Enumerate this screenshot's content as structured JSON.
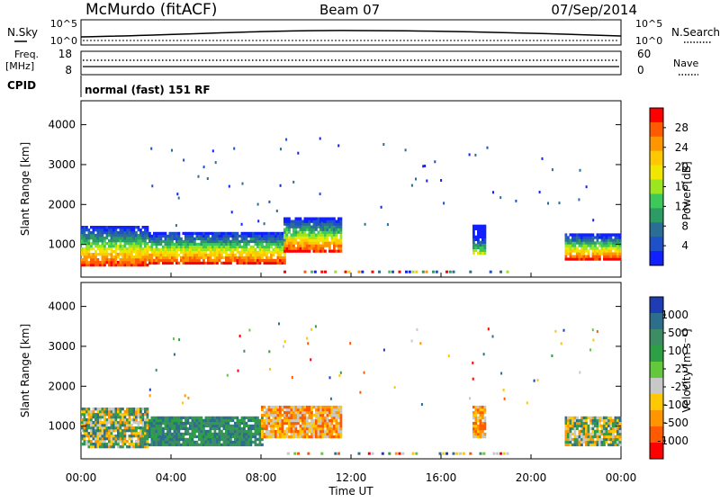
{
  "header": {
    "station": "McMurdo (fitACF)",
    "beam": "Beam 07",
    "date": "07/Sep/2014"
  },
  "top_panel": {
    "left_label": "N.Sky",
    "right_label": "N.Search",
    "left_ticks": [
      "10^5",
      "10^0"
    ],
    "right_ticks": [
      "10^5",
      "10^0"
    ]
  },
  "freq_panel": {
    "left_label": "Freq.",
    "left_unit": "[MHz]",
    "right_label": "Nave",
    "left_ticks": [
      "18",
      "8"
    ],
    "right_ticks": [
      "60",
      "0"
    ]
  },
  "cpid": {
    "label": "CPID",
    "mode": "normal (fast) 151 RF"
  },
  "chart_data": [
    {
      "type": "heatmap",
      "name": "power",
      "ylabel": "Slant Range [km]",
      "ylim": [
        180,
        4600
      ],
      "yticks": [
        "1000",
        "2000",
        "3000",
        "4000"
      ],
      "colorbar": {
        "label": "Power [dB]",
        "ticks": [
          "28",
          "24",
          "20",
          "16",
          "12",
          "8",
          "4"
        ],
        "colors": [
          "#ff0000",
          "#ff5a00",
          "#ff9600",
          "#ffc800",
          "#f0e600",
          "#9be61e",
          "#3cc85a",
          "#2d9b64",
          "#2a6e96",
          "#1e50c8",
          "#1020ff"
        ]
      },
      "bands": [
        {
          "t": [
            0.0,
            3.0
          ],
          "r": [
            450,
            1450
          ],
          "level": "high"
        },
        {
          "t": [
            3.0,
            9.0
          ],
          "r": [
            500,
            1300
          ],
          "level": "mid"
        },
        {
          "t": [
            9.0,
            11.5
          ],
          "r": [
            800,
            1650
          ],
          "level": "mid"
        },
        {
          "t": [
            17.4,
            18.0
          ],
          "r": [
            750,
            1450
          ],
          "level": "low"
        },
        {
          "t": [
            21.5,
            24.0
          ],
          "r": [
            600,
            1250
          ],
          "level": "high"
        }
      ]
    },
    {
      "type": "heatmap",
      "name": "velocity",
      "xlabel": "Time UT",
      "ylabel": "Slant Range [km]",
      "ylim": [
        180,
        4600
      ],
      "yticks": [
        "1000",
        "2000",
        "3000",
        "4000"
      ],
      "xticks": [
        "00:00",
        "04:00",
        "08:00",
        "12:00",
        "16:00",
        "20:00",
        "00:00"
      ],
      "colorbar": {
        "label": "Velocity [m s⁻¹]",
        "ticks": [
          "1000",
          "500",
          "100",
          "25",
          "-25",
          "-100",
          "-500",
          "-1000"
        ],
        "colors": [
          "#1e3cb4",
          "#2d6e8c",
          "#3c8c64",
          "#2da046",
          "#64c83c",
          "#c8c8c8",
          "#ffc800",
          "#ff9600",
          "#ff5a00",
          "#ff0000"
        ]
      },
      "bands": [
        {
          "t": [
            0.0,
            3.0
          ],
          "r": [
            450,
            1400
          ],
          "level": "green-orange"
        },
        {
          "t": [
            3.0,
            8.0
          ],
          "r": [
            500,
            1200
          ],
          "level": "green"
        },
        {
          "t": [
            8.0,
            11.5
          ],
          "r": [
            700,
            1500
          ],
          "level": "orange"
        },
        {
          "t": [
            17.4,
            18.0
          ],
          "r": [
            700,
            1500
          ],
          "level": "orange"
        },
        {
          "t": [
            21.5,
            24.0
          ],
          "r": [
            500,
            1200
          ],
          "level": "green-orange"
        }
      ]
    }
  ]
}
